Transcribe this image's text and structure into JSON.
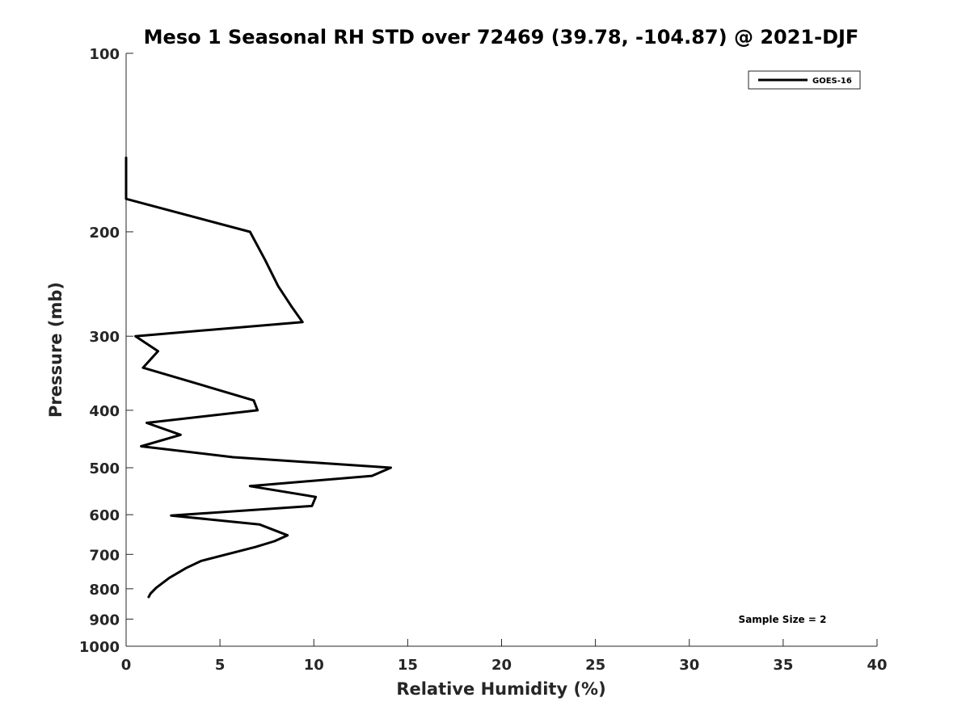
{
  "chart_data": {
    "type": "line",
    "title": "Meso 1 Seasonal RH STD over 72469 (39.78, -104.87) @ 2021-DJF",
    "xlabel": "Relative Humidity (%)",
    "ylabel": "Pressure (mb)",
    "xlim": [
      0,
      40
    ],
    "ylim": [
      100,
      1000
    ],
    "y_scale": "log",
    "y_reversed": true,
    "grid": false,
    "x_ticks": [
      0,
      5,
      10,
      15,
      20,
      25,
      30,
      35,
      40
    ],
    "x_tick_labels": [
      "0",
      "5",
      "10",
      "15",
      "20",
      "25",
      "30",
      "35",
      "40"
    ],
    "y_ticks": [
      100,
      200,
      300,
      400,
      500,
      600,
      700,
      800,
      900,
      1000
    ],
    "y_tick_labels": [
      "100",
      "200",
      "300",
      "400",
      "500",
      "600",
      "700",
      "800",
      "900",
      "1000"
    ],
    "legend_position": "top-right",
    "annotation": "Sample Size = 2",
    "series": [
      {
        "name": "GOES-16",
        "color": "#000000",
        "points": [
          {
            "x": 0.0,
            "y": 150
          },
          {
            "x": 0.0,
            "y": 176
          },
          {
            "x": 6.6,
            "y": 200
          },
          {
            "x": 7.4,
            "y": 223
          },
          {
            "x": 8.1,
            "y": 247
          },
          {
            "x": 8.8,
            "y": 267
          },
          {
            "x": 9.4,
            "y": 284
          },
          {
            "x": 0.5,
            "y": 300
          },
          {
            "x": 1.7,
            "y": 318
          },
          {
            "x": 0.9,
            "y": 339
          },
          {
            "x": 3.7,
            "y": 360
          },
          {
            "x": 6.8,
            "y": 385
          },
          {
            "x": 7.0,
            "y": 400
          },
          {
            "x": 1.1,
            "y": 420
          },
          {
            "x": 2.9,
            "y": 440
          },
          {
            "x": 0.8,
            "y": 460
          },
          {
            "x": 5.7,
            "y": 480
          },
          {
            "x": 14.1,
            "y": 500
          },
          {
            "x": 13.1,
            "y": 516
          },
          {
            "x": 6.6,
            "y": 537
          },
          {
            "x": 10.1,
            "y": 560
          },
          {
            "x": 9.9,
            "y": 580
          },
          {
            "x": 2.4,
            "y": 602
          },
          {
            "x": 7.1,
            "y": 623
          },
          {
            "x": 8.6,
            "y": 650
          },
          {
            "x": 7.9,
            "y": 665
          },
          {
            "x": 6.9,
            "y": 680
          },
          {
            "x": 4.0,
            "y": 718
          },
          {
            "x": 3.2,
            "y": 738
          },
          {
            "x": 2.3,
            "y": 767
          },
          {
            "x": 1.6,
            "y": 797
          },
          {
            "x": 1.3,
            "y": 815
          },
          {
            "x": 1.2,
            "y": 826
          }
        ]
      }
    ]
  }
}
